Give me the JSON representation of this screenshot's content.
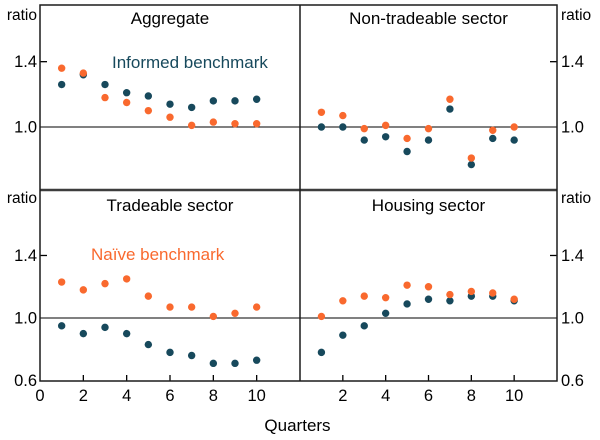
{
  "chart_data": {
    "type": "scatter",
    "xlabel": "Quarters",
    "y_unit_label": "ratio",
    "x": [
      1,
      2,
      3,
      4,
      5,
      6,
      7,
      8,
      9,
      10
    ],
    "series": [
      {
        "key": "informed",
        "name": "Informed benchmark",
        "color": "#17495C"
      },
      {
        "key": "naive",
        "name": "Naïve benchmark",
        "color": "#F9692E"
      }
    ],
    "y_axis": {
      "gridline_at": 1.0,
      "top_row": {
        "tick_values": [
          1.4,
          1.0
        ],
        "tick_labels": [
          "1.4",
          "1.0"
        ],
        "ylim": [
          0.61,
          1.75
        ]
      },
      "bottom_row": {
        "tick_values": [
          1.4,
          1.0,
          0.6
        ],
        "tick_labels": [
          "1.4",
          "1.0",
          "0.6"
        ],
        "ylim": [
          0.6,
          1.82
        ]
      }
    },
    "x_axis": {
      "label": "Quarters",
      "left_panel_ticks": {
        "values": [
          0,
          2,
          4,
          6,
          8,
          10
        ],
        "labels": [
          "0",
          "2",
          "4",
          "6",
          "8",
          "10"
        ]
      },
      "right_panel_ticks": {
        "values": [
          2,
          4,
          6,
          8,
          10
        ],
        "labels": [
          "2",
          "4",
          "6",
          "8",
          "10"
        ]
      }
    },
    "panels": [
      {
        "id": "aggregate",
        "title": "Aggregate",
        "row": 0,
        "col": 0,
        "annotation": "Informed benchmark",
        "quarters": [
          1,
          2,
          3,
          4,
          5,
          6,
          7,
          8,
          9,
          10
        ],
        "informed": [
          1.26,
          1.32,
          1.26,
          1.21,
          1.19,
          1.14,
          1.12,
          1.16,
          1.16,
          1.17
        ],
        "naive": [
          1.36,
          1.33,
          1.18,
          1.15,
          1.1,
          1.06,
          1.01,
          1.03,
          1.02,
          1.02
        ]
      },
      {
        "id": "non-tradeable",
        "title": "Non-tradeable sector",
        "row": 0,
        "col": 1,
        "quarters": [
          1,
          2,
          3,
          4,
          5,
          6,
          7,
          8,
          9,
          10
        ],
        "informed": [
          1.0,
          1.0,
          0.92,
          0.94,
          0.85,
          0.92,
          1.11,
          0.77,
          0.93,
          0.92
        ],
        "naive": [
          1.09,
          1.07,
          0.99,
          1.01,
          0.93,
          0.99,
          1.17,
          0.81,
          0.98,
          1.0
        ]
      },
      {
        "id": "tradeable",
        "title": "Tradeable sector",
        "row": 1,
        "col": 0,
        "annotation": "Naïve benchmark",
        "quarters": [
          1,
          2,
          3,
          4,
          5,
          6,
          7,
          8,
          9,
          10
        ],
        "informed": [
          0.95,
          0.9,
          0.94,
          0.9,
          0.83,
          0.78,
          0.76,
          0.71,
          0.71,
          0.73
        ],
        "naive": [
          1.23,
          1.18,
          1.22,
          1.25,
          1.14,
          1.07,
          1.07,
          1.01,
          1.03,
          1.07
        ]
      },
      {
        "id": "housing",
        "title": "Housing sector",
        "row": 1,
        "col": 1,
        "quarters": [
          1,
          2,
          3,
          4,
          5,
          6,
          7,
          8,
          9,
          10
        ],
        "informed": [
          0.78,
          0.89,
          0.95,
          1.03,
          1.09,
          1.12,
          1.11,
          1.14,
          1.14,
          1.11
        ],
        "naive": [
          1.01,
          1.11,
          1.14,
          1.13,
          1.21,
          1.2,
          1.15,
          1.17,
          1.16,
          1.12
        ]
      }
    ]
  }
}
